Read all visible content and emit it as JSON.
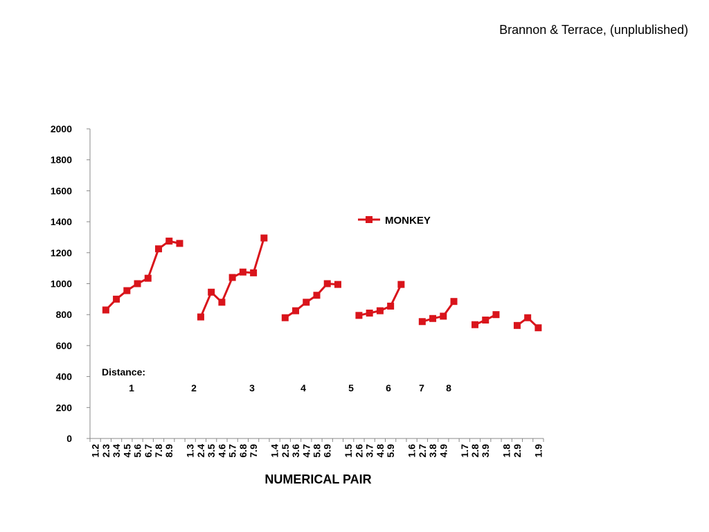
{
  "citation": "Brannon & Terrace, (unplublished)",
  "chart_data": {
    "type": "line",
    "title": "",
    "xlabel": "NUMERICAL PAIR",
    "ylabel": "",
    "ylim": [
      0,
      2000
    ],
    "yticks": [
      0,
      200,
      400,
      600,
      800,
      1000,
      1200,
      1400,
      1600,
      1800,
      2000
    ],
    "categories": [
      "1.2",
      "2.3",
      "3.4",
      "4.5",
      "5.6",
      "6.7",
      "7.8",
      "8.9",
      "",
      "1.3",
      "2.4",
      "3.5",
      "4.6",
      "5.7",
      "6.8",
      "7.9",
      "",
      "1.4",
      "2.5",
      "3.6",
      "4.7",
      "5.8",
      "6.9",
      "",
      "1.5",
      "2.6",
      "3.7",
      "4.8",
      "5.9",
      "",
      "1.6",
      "2.7",
      "3.8",
      "4.9",
      "",
      "1.7",
      "2.8",
      "3.9",
      "",
      "1.8",
      "2.9",
      "",
      "1.9"
    ],
    "series": [
      {
        "name": "MONKEY",
        "color": "#d9141b",
        "values": [
          null,
          830,
          900,
          955,
          1000,
          1035,
          1225,
          1275,
          1260,
          null,
          785,
          945,
          880,
          1040,
          1075,
          1070,
          1295,
          null,
          780,
          825,
          880,
          925,
          1000,
          995,
          null,
          795,
          810,
          825,
          855,
          995,
          null,
          755,
          775,
          790,
          885,
          null,
          735,
          765,
          800,
          null,
          730,
          780,
          715
        ]
      }
    ],
    "grid": false,
    "legend": "inside-center",
    "annotations": {
      "distance_label": "Distance:",
      "distances": [
        "1",
        "2",
        "3",
        "4",
        "5",
        "6",
        "7",
        "8"
      ]
    }
  }
}
